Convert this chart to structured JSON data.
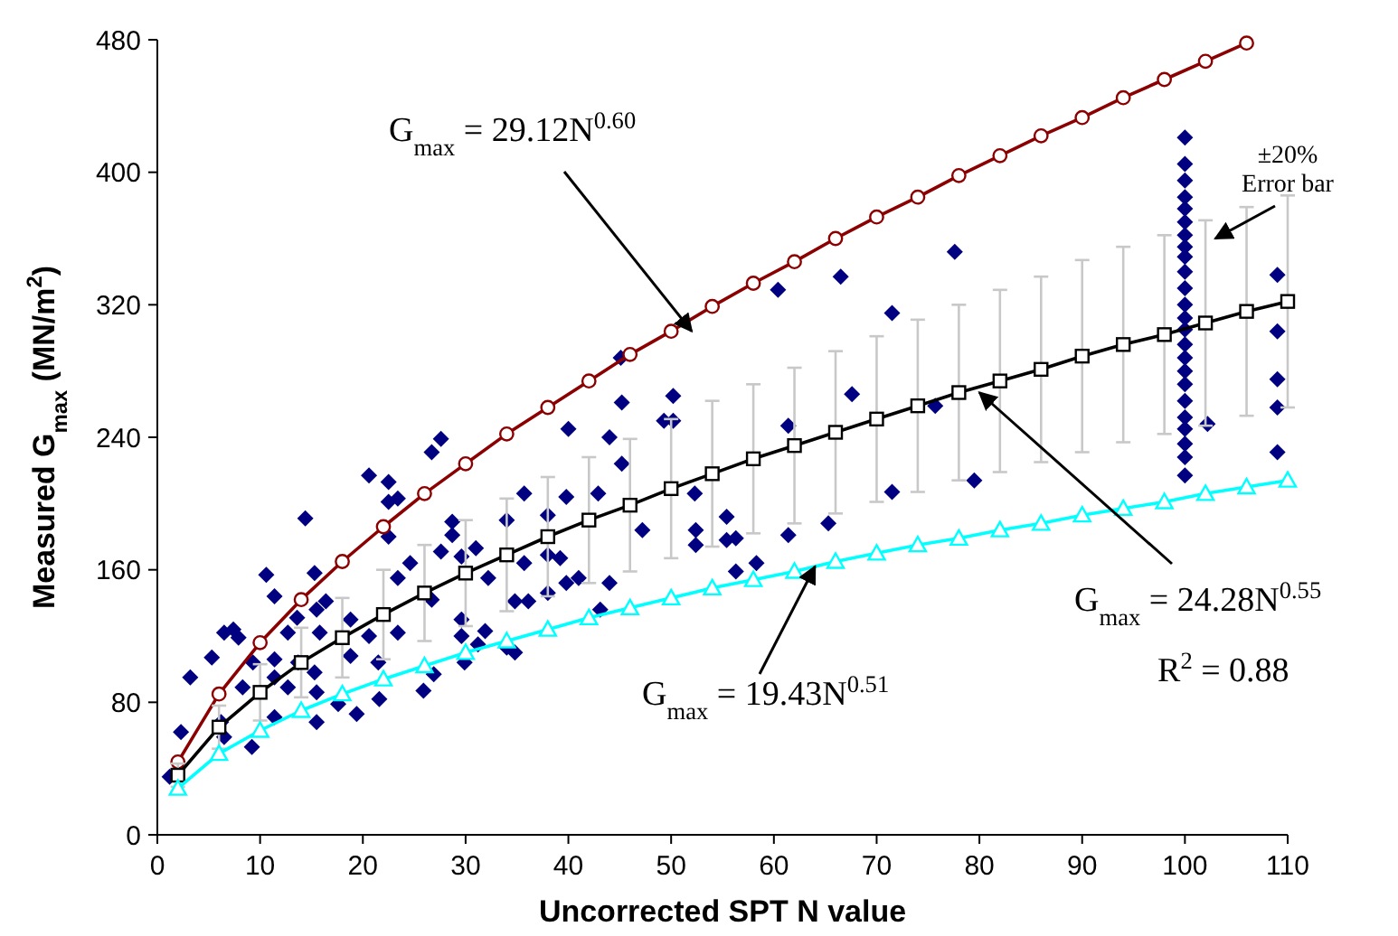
{
  "chart_data": {
    "type": "scatter",
    "xlabel": "Uncorrected SPT N value",
    "ylabel": "Measured G$_{max}$ (MN/m$^{2}$)",
    "xlim": [
      0,
      110
    ],
    "xticks": [
      0,
      10,
      20,
      30,
      40,
      50,
      60,
      70,
      80,
      90,
      100,
      110
    ],
    "ylim": [
      0,
      480
    ],
    "yticks": [
      0,
      80,
      160,
      240,
      320,
      400,
      480
    ],
    "grid": false,
    "annotations": [
      {
        "text": "G$_{max}$ = 29.12N$^{0.60}$",
        "x": 52,
        "y": 304
      },
      "±20% Error bar",
      {
        "text": "G$_{max}$ = 24.28N$^{0.55}$",
        "x": 80,
        "y": 267
      },
      "R$^{2}$ = 0.88",
      {
        "text": "G$_{max}$ = 19.43N$^{0.51}$",
        "x": 64,
        "y": 162
      }
    ],
    "series": [
      {
        "marker": "diamond",
        "color": "#000080",
        "x": [
          1.2,
          2.3,
          3.2,
          27.6,
          26.7,
          20.6,
          22.5,
          22.5,
          23.4,
          14.4,
          22.5,
          28.7,
          28.7,
          27.6,
          29.6,
          24.6,
          10.6,
          15.3,
          23.4,
          11.4,
          15.5,
          16.4,
          13.6,
          6.5,
          7.4,
          7.9,
          5.3,
          9.3,
          12.7,
          15.8,
          18.8,
          20.6,
          23.4,
          26.7,
          29.6,
          29.6,
          11.4,
          13.7,
          15.3,
          18.8,
          21.5,
          11.4,
          8.3,
          12.7,
          15.5,
          17.6,
          19.4,
          21.6,
          15.5,
          11.4,
          25.9,
          26.9,
          6.2,
          6.5,
          9.2,
          31.2,
          29.9,
          60.4,
          45.1,
          45.2,
          50.2,
          49.3,
          50.2,
          40,
          44,
          61.4,
          45.2,
          35.7,
          39.8,
          42.9,
          52.3,
          38,
          34,
          47.2,
          55.4,
          52.4,
          52.4,
          55.4,
          56.3,
          61.4,
          31,
          35.7,
          38,
          39.2,
          32.2,
          41,
          39.8,
          44,
          38,
          34.8,
          36.1,
          56.3,
          58.3,
          31.9,
          43.1,
          34,
          34.8,
          77.6,
          66.5,
          71.5,
          67.6,
          75.7,
          79.5,
          71.5,
          65.3,
          100,
          100,
          100,
          100,
          100,
          100,
          100,
          100,
          100,
          100,
          100,
          100,
          100,
          100,
          100,
          100,
          100,
          100,
          100,
          100,
          100,
          100,
          100,
          100,
          102.2,
          109,
          109,
          109,
          109,
          109
        ],
        "values": [
          35,
          62,
          95,
          239,
          231,
          217,
          213,
          201,
          203,
          191,
          180,
          189,
          181,
          171,
          168,
          164,
          157,
          158,
          155,
          144,
          136,
          141,
          131,
          122,
          124,
          119,
          107,
          104,
          122,
          122,
          130,
          120,
          122,
          142,
          130,
          120,
          106,
          104,
          98,
          108,
          104,
          95,
          89,
          89,
          86,
          79,
          73,
          82,
          68,
          71,
          87,
          97,
          68,
          59,
          53,
          115,
          104,
          329,
          288,
          261,
          265,
          250,
          250,
          245,
          240,
          247,
          224,
          206,
          204,
          206,
          206,
          193,
          190,
          184,
          192,
          184,
          175,
          178,
          179,
          181,
          173,
          164,
          169,
          167,
          155,
          155,
          152,
          152,
          146,
          141,
          141,
          159,
          164,
          123,
          136,
          113,
          110,
          352,
          337,
          315,
          266,
          259,
          214,
          207,
          188,
          421,
          405,
          395,
          385,
          378,
          370,
          362,
          355,
          349,
          340,
          330,
          320,
          312,
          305,
          296,
          288,
          280,
          272,
          262,
          252,
          245,
          236,
          228,
          217,
          248,
          338,
          304,
          275,
          258,
          231
        ]
      },
      {
        "type": "line",
        "marker": "circle",
        "color": "#8b0000",
        "x": [
          2,
          6,
          10,
          14,
          18,
          22,
          26,
          30,
          34,
          38,
          42,
          46,
          50,
          54,
          58,
          62,
          66,
          70,
          74,
          78,
          82,
          86,
          90,
          94,
          98,
          102,
          106
        ],
        "values": [
          44,
          85,
          116,
          142,
          165,
          186,
          206,
          224,
          242,
          258,
          274,
          290,
          304,
          319,
          333,
          346,
          360,
          373,
          385,
          398,
          410,
          422,
          433,
          445,
          456,
          467,
          478
        ]
      },
      {
        "type": "line",
        "marker": "square",
        "color": "#000000",
        "x": [
          2,
          6,
          10,
          14,
          18,
          22,
          26,
          30,
          34,
          38,
          42,
          46,
          50,
          54,
          58,
          62,
          66,
          70,
          74,
          78,
          82,
          86,
          90,
          94,
          98,
          102,
          106,
          110
        ],
        "values": [
          36,
          65,
          86,
          104,
          119,
          133,
          146,
          158,
          169,
          180,
          190,
          199,
          209,
          218,
          227,
          235,
          243,
          251,
          259,
          267,
          274,
          281,
          289,
          296,
          302,
          309,
          316,
          322
        ],
        "errors": [
          7,
          13,
          17,
          21,
          24,
          27,
          29,
          32,
          34,
          36,
          38,
          40,
          42,
          44,
          45,
          47,
          49,
          50,
          52,
          53,
          55,
          56,
          58,
          59,
          60,
          62,
          63,
          64
        ]
      },
      {
        "type": "line",
        "marker": "triangle",
        "color": "#00ffff",
        "x": [
          2,
          6,
          10,
          14,
          18,
          22,
          26,
          30,
          34,
          38,
          42,
          46,
          50,
          54,
          58,
          62,
          66,
          70,
          74,
          78,
          82,
          86,
          90,
          94,
          98,
          102,
          106,
          110
        ],
        "values": [
          28,
          49,
          63,
          75,
          85,
          94,
          102,
          110,
          117,
          124,
          131,
          137,
          143,
          149,
          154,
          159,
          165,
          170,
          175,
          179,
          184,
          188,
          193,
          197,
          201,
          206,
          210,
          214
        ]
      }
    ]
  }
}
